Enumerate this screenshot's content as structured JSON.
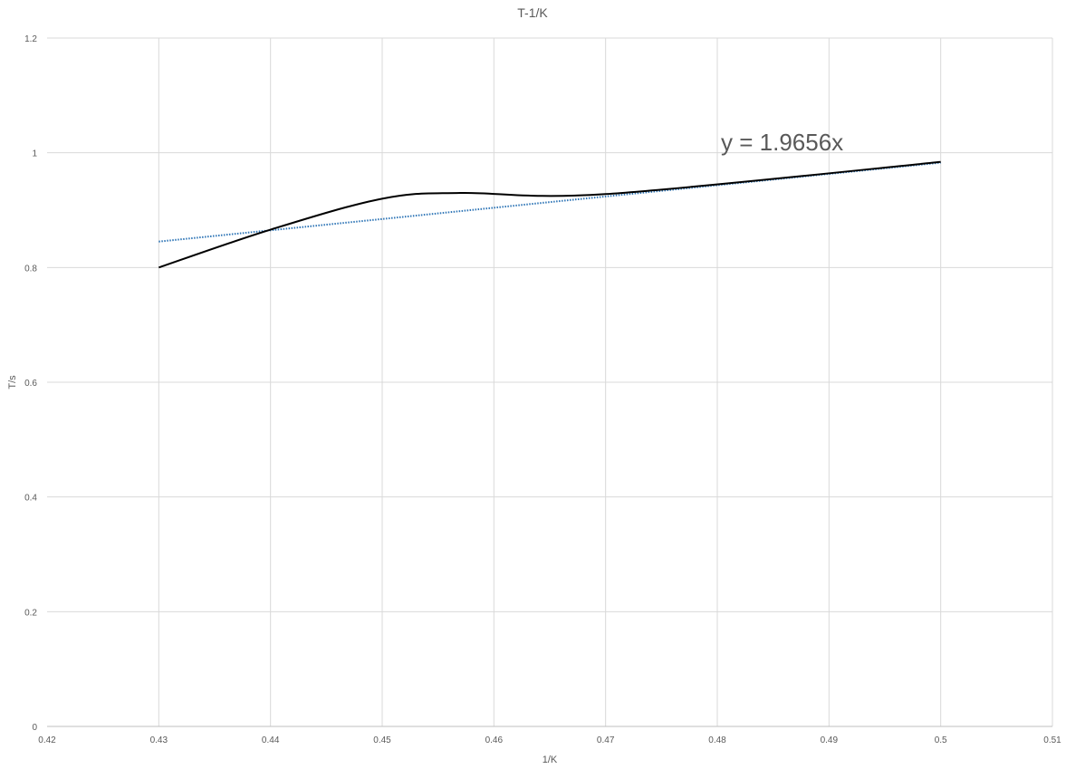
{
  "chart_data": {
    "type": "line",
    "title": "T-1/K",
    "xlabel": "1/K",
    "ylabel": "T/s",
    "xlim": [
      0.42,
      0.51
    ],
    "ylim": [
      0,
      1.2
    ],
    "x_ticks": [
      "0.42",
      "0.43",
      "0.44",
      "0.45",
      "0.46",
      "0.47",
      "0.48",
      "0.49",
      "0.5",
      "0.51"
    ],
    "y_ticks": [
      "0",
      "0.2",
      "0.4",
      "0.6",
      "0.8",
      "1",
      "1.2"
    ],
    "grid": true,
    "legend": "none",
    "series": [
      {
        "x": [
          0.43,
          0.44,
          0.45,
          0.457,
          0.47,
          0.5
        ],
        "y": [
          0.8,
          0.866,
          0.92,
          0.93,
          0.928,
          0.984
        ],
        "color": "#000000",
        "smooth": true
      }
    ],
    "trendline": {
      "type": "linear",
      "slope": 1.9656,
      "intercept": 0,
      "x_range": [
        0.43,
        0.5
      ],
      "color": "#2E75B6",
      "dash": "dotted",
      "equation_label": "y = 1.9656x"
    }
  }
}
